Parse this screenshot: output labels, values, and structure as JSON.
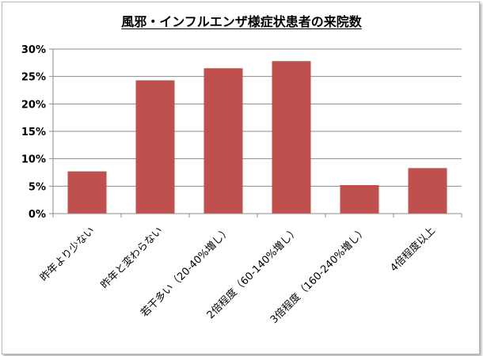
{
  "chart_data": {
    "type": "bar",
    "title": "風邪・インフルエンザ様症状患者の来院数",
    "categories": [
      "昨年より少ない",
      "昨年と変わらない",
      "若干多い（20-40%増し）",
      "2倍程度（60-140%増し）",
      "3倍程度（160-240%増し）",
      "4倍程度以上"
    ],
    "values": [
      7.7,
      24.3,
      26.5,
      27.8,
      5.2,
      8.3
    ],
    "ylim": [
      0,
      30
    ],
    "ytick_values": [
      0,
      5,
      10,
      15,
      20,
      25,
      30
    ],
    "yticks": [
      "0%",
      "5%",
      "10%",
      "15%",
      "20%",
      "25%",
      "30%"
    ],
    "xlabel": "",
    "ylabel": "",
    "grid": true,
    "legend": "none",
    "colors": {
      "bar": "#c0504d",
      "grid": "#8c8c8c",
      "axis": "#8c8c8c"
    }
  }
}
